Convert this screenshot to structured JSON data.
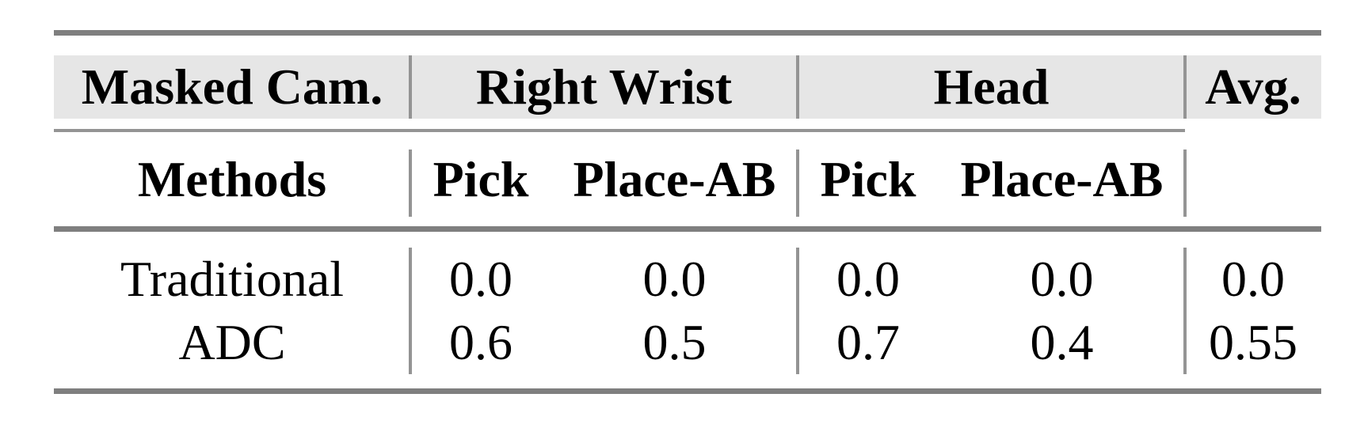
{
  "colors": {
    "background": "#ffffff",
    "header_band": "#e6e6e6",
    "rule_thick": "#7f7f7f",
    "rule_thin": "#949494",
    "text": "#000000"
  },
  "table": {
    "group_header": {
      "col1": "Masked Cam.",
      "group1": "Right Wrist",
      "group2": "Head",
      "avg": "Avg."
    },
    "sub_header": {
      "col1": "Methods",
      "g1_sub1": "Pick",
      "g1_sub2": "Place-AB",
      "g2_sub1": "Pick",
      "g2_sub2": "Place-AB",
      "avg": ""
    },
    "rows": [
      {
        "method": "Traditional",
        "rw_pick": "0.0",
        "rw_place_ab": "0.0",
        "head_pick": "0.0",
        "head_place_ab": "0.0",
        "avg": "0.0"
      },
      {
        "method": "ADC",
        "rw_pick": "0.6",
        "rw_place_ab": "0.5",
        "head_pick": "0.7",
        "head_place_ab": "0.4",
        "avg": "0.55"
      }
    ]
  }
}
